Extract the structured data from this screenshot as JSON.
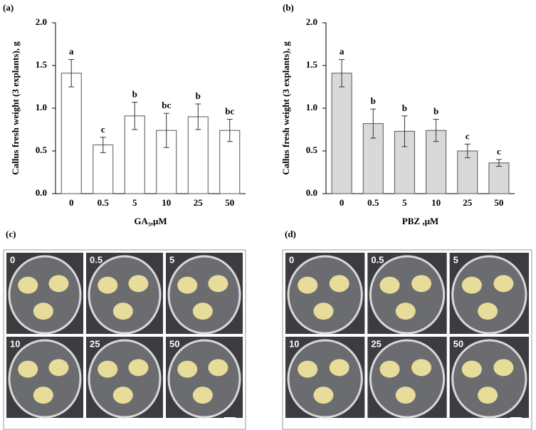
{
  "chart_data": [
    {
      "type": "bar",
      "label": "(a)",
      "y_label": "Callus fresh weight (3 explants), g",
      "x_label": "GA₃,μM",
      "categories": [
        "0",
        "0.5",
        "5",
        "10",
        "25",
        "50"
      ],
      "values": [
        1.41,
        0.57,
        0.91,
        0.74,
        0.9,
        0.74
      ],
      "errors": [
        0.16,
        0.09,
        0.16,
        0.2,
        0.15,
        0.13
      ],
      "annotations": [
        "a",
        "c",
        "b",
        "bc",
        "b",
        "bc"
      ],
      "color": "#ffffff",
      "ylim": [
        0,
        2
      ],
      "yticks": [
        {
          "value": 0,
          "label": "0.0"
        },
        0.5,
        {
          "value": 1,
          "label": "1.0"
        },
        1.5,
        {
          "value": 2,
          "label": "2.0"
        }
      ]
    },
    {
      "type": "bar",
      "label": "(b)",
      "y_label": "Callus fresh weight (3 explants), g",
      "x_label": "PBZ ,μM",
      "categories": [
        "0",
        "0.5",
        "5",
        "10",
        "25",
        "50"
      ],
      "values": [
        1.41,
        0.82,
        0.73,
        0.74,
        0.5,
        0.36
      ],
      "errors": [
        0.16,
        0.17,
        0.18,
        0.13,
        0.08,
        0.04
      ],
      "annotations": [
        "a",
        "b",
        "b",
        "b",
        "c",
        "c"
      ],
      "color": "#d9d9d9",
      "ylim": [
        0,
        2
      ],
      "yticks": [
        {
          "value": 0,
          "label": "0.0"
        },
        0.5,
        {
          "value": 1,
          "label": "1.0"
        },
        1.5,
        {
          "value": 2,
          "label": "2.0"
        }
      ]
    }
  ],
  "panels": [
    {
      "label": "(c)",
      "wells": [
        "0",
        "0.5",
        "5",
        "10",
        "25",
        "50"
      ]
    },
    {
      "label": "(d)",
      "wells": [
        "0",
        "0.5",
        "5",
        "10",
        "25",
        "50"
      ]
    }
  ]
}
